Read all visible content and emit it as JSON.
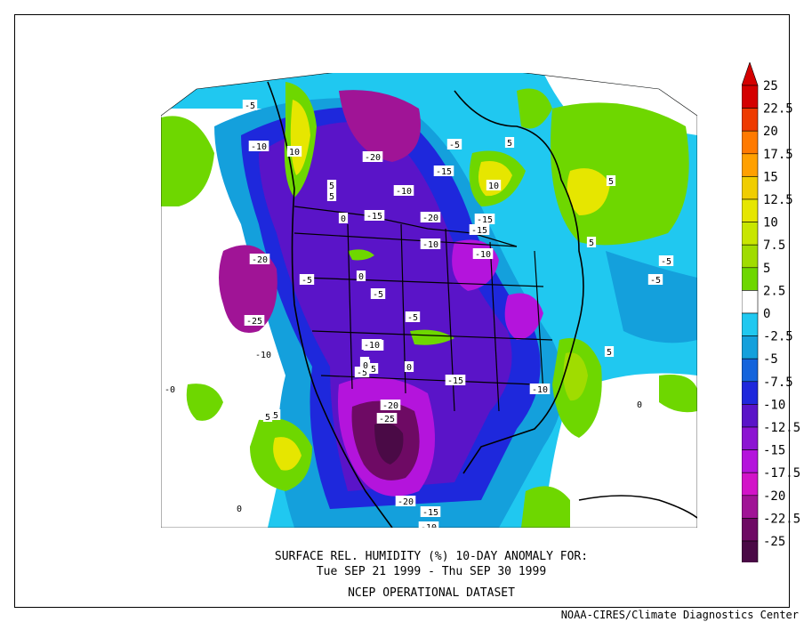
{
  "caption": {
    "line1": "SURFACE REL. HUMIDITY (%)   10-DAY ANOMALY FOR:",
    "line2": "Tue SEP 21 1999 - Thu SEP 30 1999",
    "line3": "NCEP OPERATIONAL DATASET"
  },
  "credit": "NOAA-CIRES/Climate Diagnostics Center",
  "colorbar": {
    "levels": [
      "25",
      "22.5",
      "20",
      "17.5",
      "15",
      "12.5",
      "10",
      "7.5",
      "5",
      "2.5",
      "0",
      "-2.5",
      "-5",
      "-7.5",
      "-10",
      "-12.5",
      "-15",
      "-17.5",
      "-20",
      "-22.5",
      "-25"
    ],
    "colors": [
      "#d40000",
      "#ee3a00",
      "#ff7a00",
      "#ffa000",
      "#f0cd00",
      "#e6e600",
      "#c8e600",
      "#a0dc00",
      "#6ed700",
      "#ffffff",
      "#20c8f0",
      "#14a0dc",
      "#1464dc",
      "#1e28dc",
      "#5a14c8",
      "#8c14d2",
      "#b414dc",
      "#d214c8",
      "#a01496",
      "#6e0a64",
      "#4a0a46"
    ]
  },
  "contour_labels": [
    {
      "text": "-5"
    },
    {
      "text": "-10"
    },
    {
      "text": "10"
    },
    {
      "text": "5"
    },
    {
      "text": "-20"
    },
    {
      "text": "-5"
    },
    {
      "text": "5"
    },
    {
      "text": "5"
    },
    {
      "text": "-15"
    },
    {
      "text": "10"
    },
    {
      "text": "5"
    },
    {
      "text": "-10"
    },
    {
      "text": "-15"
    },
    {
      "text": "0"
    },
    {
      "text": "-20"
    },
    {
      "text": "-10"
    },
    {
      "text": "-15"
    },
    {
      "text": "-10"
    },
    {
      "text": "-15"
    },
    {
      "text": "5"
    },
    {
      "text": "-20"
    },
    {
      "text": "0"
    },
    {
      "text": "-5"
    },
    {
      "text": "-5"
    },
    {
      "text": "-5"
    },
    {
      "text": "-5"
    },
    {
      "text": "-5"
    },
    {
      "text": "-10"
    },
    {
      "text": "-15"
    },
    {
      "text": "-25"
    },
    {
      "text": "-5"
    },
    {
      "text": "-10"
    },
    {
      "text": "0"
    },
    {
      "text": "5"
    },
    {
      "text": "-10"
    },
    {
      "text": "-5"
    },
    {
      "text": "-15"
    },
    {
      "text": "0"
    },
    {
      "text": "-10"
    },
    {
      "text": "-0"
    },
    {
      "text": "0"
    },
    {
      "text": "-20"
    },
    {
      "text": "-25"
    },
    {
      "text": "5"
    },
    {
      "text": "0"
    },
    {
      "text": "-20"
    },
    {
      "text": "-15"
    },
    {
      "text": "0"
    },
    {
      "text": "-10"
    }
  ]
}
